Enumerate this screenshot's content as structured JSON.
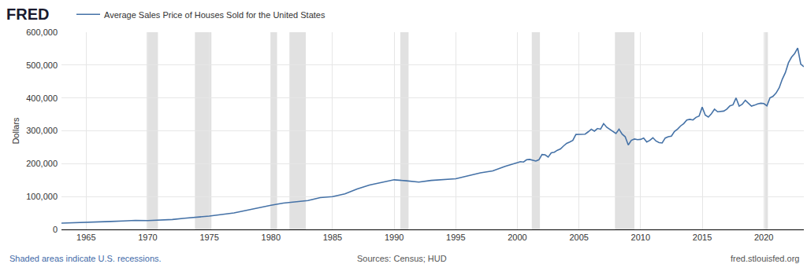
{
  "chart_data": {
    "type": "line",
    "logo": "FRED",
    "ylabel": "Dollars",
    "footnote": "Shaded areas indicate U.S. recessions.",
    "source": "Sources: Census; HUD",
    "credit": "fred.stlouisfed.org",
    "legend": "top-left",
    "grid": true,
    "x": [
      1963,
      1964,
      1965,
      1966,
      1967,
      1968,
      1969,
      1970,
      1971,
      1972,
      1973,
      1974,
      1975,
      1976,
      1977,
      1978,
      1979,
      1980,
      1981,
      1982,
      1983,
      1984,
      1985,
      1986,
      1987,
      1988,
      1989,
      1990,
      1991,
      1992,
      1993,
      1994,
      1995,
      1996,
      1997,
      1998,
      1999,
      2000,
      2000.25,
      2000.5,
      2000.75,
      2001,
      2001.25,
      2001.5,
      2001.75,
      2002,
      2002.25,
      2002.5,
      2002.75,
      2003,
      2003.25,
      2003.5,
      2003.75,
      2004,
      2004.25,
      2004.5,
      2004.75,
      2005,
      2005.25,
      2005.5,
      2005.75,
      2006,
      2006.25,
      2006.5,
      2006.75,
      2007,
      2007.25,
      2007.5,
      2007.75,
      2008,
      2008.25,
      2008.5,
      2008.75,
      2009,
      2009.25,
      2009.5,
      2009.75,
      2010,
      2010.25,
      2010.5,
      2010.75,
      2011,
      2011.25,
      2011.5,
      2011.75,
      2012,
      2012.25,
      2012.5,
      2012.75,
      2013,
      2013.25,
      2013.5,
      2013.75,
      2014,
      2014.25,
      2014.5,
      2014.75,
      2015,
      2015.25,
      2015.5,
      2015.75,
      2016,
      2016.25,
      2016.5,
      2016.75,
      2017,
      2017.25,
      2017.5,
      2017.75,
      2018,
      2018.25,
      2018.5,
      2018.75,
      2019,
      2019.25,
      2019.5,
      2019.75,
      2020,
      2020.25,
      2020.5,
      2020.75,
      2021,
      2021.25,
      2021.5,
      2021.75,
      2022,
      2022.25,
      2022.5,
      2022.75,
      2023,
      2023.25
    ],
    "series": [
      {
        "name": "Average Sales Price of Houses Sold for the United States",
        "color": "#4572a7",
        "line_style": "solid",
        "values": [
          19300,
          20200,
          21500,
          23200,
          24200,
          25800,
          27600,
          26900,
          28300,
          30200,
          33900,
          37000,
          40600,
          45400,
          50000,
          58000,
          66000,
          73600,
          80000,
          83900,
          87800,
          97000,
          99600,
          108000,
          123000,
          135000,
          143000,
          151000,
          148000,
          144000,
          149000,
          151000,
          154000,
          163000,
          172000,
          178000,
          192000,
          203000,
          206000,
          205000,
          212000,
          213000,
          211000,
          208000,
          212000,
          228000,
          227000,
          220000,
          233000,
          235000,
          241000,
          245000,
          254000,
          262000,
          266000,
          271000,
          289000,
          289000,
          289000,
          290000,
          297000,
          305000,
          299000,
          307000,
          305000,
          322000,
          311000,
          305000,
          297000,
          292000,
          305000,
          290000,
          282000,
          257000,
          271000,
          275000,
          273000,
          274000,
          278000,
          266000,
          271000,
          279000,
          269000,
          264000,
          263000,
          278000,
          282000,
          284000,
          298000,
          305000,
          315000,
          322000,
          333000,
          335000,
          333000,
          341000,
          345000,
          372000,
          348000,
          342000,
          352000,
          366000,
          358000,
          359000,
          360000,
          366000,
          376000,
          379000,
          400000,
          375000,
          381000,
          393000,
          384000,
          375000,
          378000,
          382000,
          384000,
          383000,
          376000,
          400000,
          405000,
          415000,
          431000,
          457000,
          477000,
          507000,
          524000,
          535000,
          552000,
          503000,
          495000
        ]
      }
    ],
    "recessions": [
      [
        1969.92,
        1970.83
      ],
      [
        1973.83,
        1975.17
      ],
      [
        1980.0,
        1980.5
      ],
      [
        1981.5,
        1982.83
      ],
      [
        1990.5,
        1991.17
      ],
      [
        2001.17,
        2001.83
      ],
      [
        2007.92,
        2009.5
      ],
      [
        2020.08,
        2020.33
      ]
    ],
    "xlim": [
      1963,
      2023.25
    ],
    "xticks": [
      1965,
      1970,
      1975,
      1980,
      1985,
      1990,
      1995,
      2000,
      2005,
      2010,
      2015,
      2020
    ],
    "ylim": [
      0,
      600000
    ],
    "yticks": [
      0,
      {
        "value": 100000,
        "label": "100,000"
      },
      {
        "value": 200000,
        "label": "200,000"
      },
      {
        "value": 300000,
        "label": "300,000"
      },
      {
        "value": 400000,
        "label": "400,000"
      },
      {
        "value": 500000,
        "label": "500,000"
      },
      {
        "value": 600000,
        "label": "600,000"
      }
    ]
  }
}
